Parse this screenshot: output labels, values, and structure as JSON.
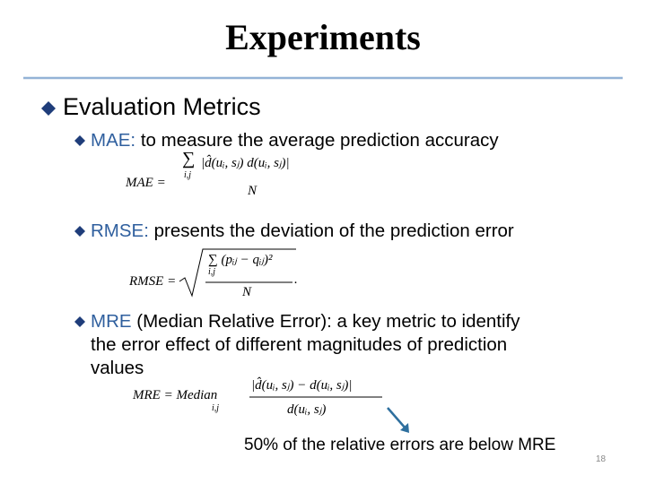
{
  "title": "Experiments",
  "section": "Evaluation Metrics",
  "items": [
    {
      "label": "MAE:",
      "lines": [
        "to measure the average prediction accuracy"
      ],
      "formula": {
        "lhs": "MAE =",
        "operator": "∑",
        "subscript": "i,j",
        "numerator": "|d̂(uᵢ, sⱼ)    d(uᵢ, sⱼ)|",
        "denominator": "N"
      }
    },
    {
      "label": "RMSE:",
      "lines": [
        "presents the deviation of the prediction error"
      ],
      "formula": {
        "lhs": "RMSE =",
        "numerator": "∑ (pᵢⱼ − qᵢⱼ)²",
        "subscript": "i,j",
        "denominator": "N",
        "tail": "."
      }
    },
    {
      "label": "MRE",
      "lines": [
        "(Median Relative Error): a key metric to identify",
        "the error effect of different magnitudes of prediction",
        "values"
      ],
      "formula": {
        "lhs": "MRE = Median",
        "subscript": "i,j",
        "numerator": "|d̂(uᵢ, sⱼ) − d(uᵢ, sⱼ)|",
        "denominator": "d(uᵢ, sⱼ)"
      }
    }
  ],
  "note": "50% of the relative errors are below MRE",
  "page_number": "18"
}
